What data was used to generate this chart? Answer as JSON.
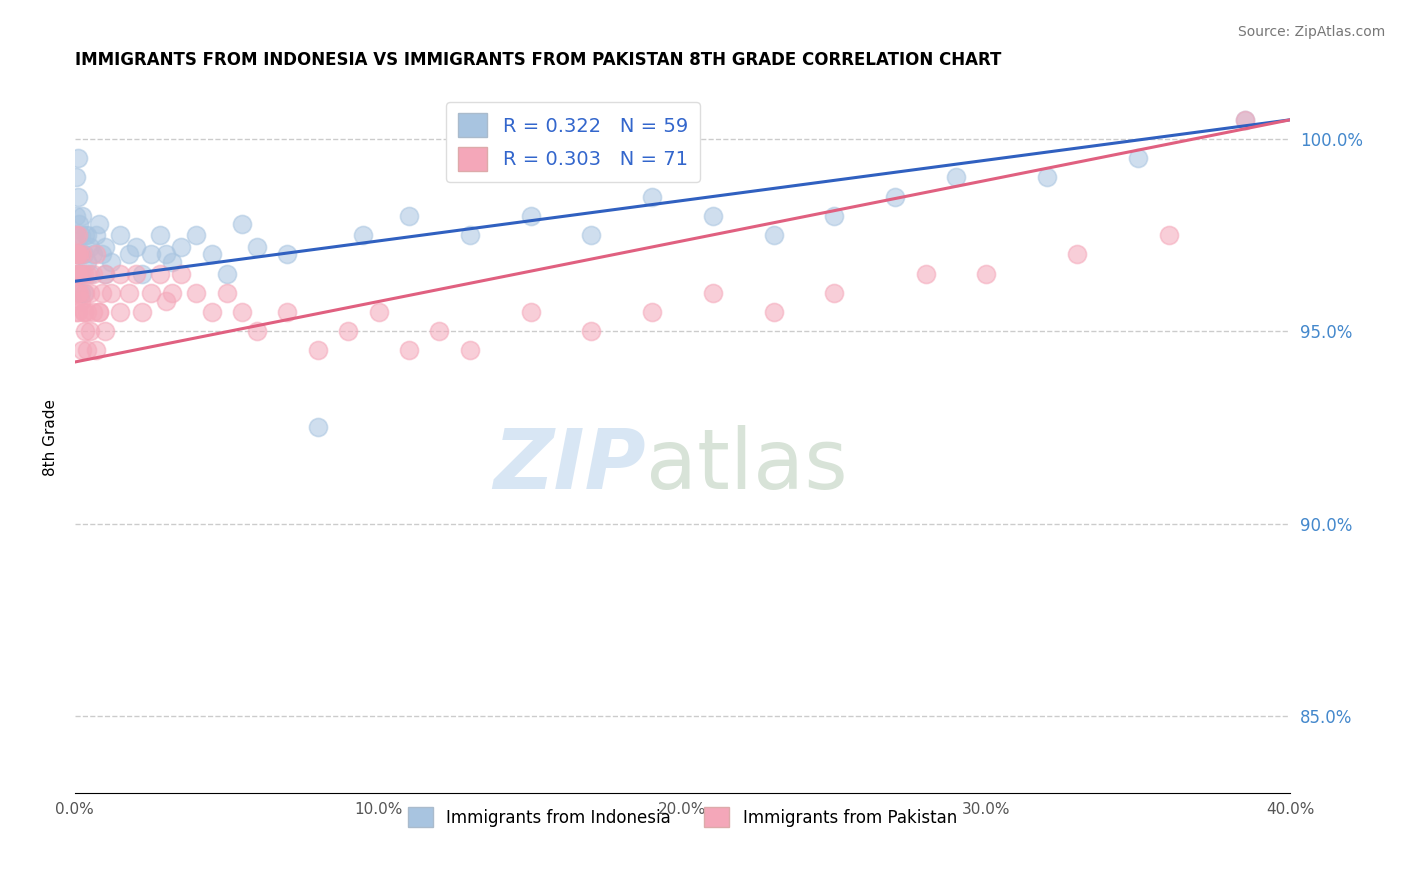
{
  "title": "IMMIGRANTS FROM INDONESIA VS IMMIGRANTS FROM PAKISTAN 8TH GRADE CORRELATION CHART",
  "source": "Source: ZipAtlas.com",
  "ylabel": "8th Grade",
  "xlim": [
    0.0,
    40.0
  ],
  "ylim": [
    83.0,
    101.5
  ],
  "yticks": [
    85.0,
    90.0,
    95.0,
    100.0
  ],
  "ytick_labels": [
    "85.0%",
    "90.0%",
    "95.0%",
    "100.0%"
  ],
  "xticks": [
    0.0,
    10.0,
    20.0,
    30.0,
    40.0
  ],
  "xtick_labels": [
    "0.0%",
    "10.0%",
    "20.0%",
    "30.0%",
    "40.0%"
  ],
  "indonesia_color": "#a8c4e0",
  "pakistan_color": "#f4a7b9",
  "indonesia_line_color": "#3060c0",
  "pakistan_line_color": "#e06080",
  "R_indonesia": 0.322,
  "N_indonesia": 59,
  "R_pakistan": 0.303,
  "N_pakistan": 71,
  "indo_line_x0": 0.0,
  "indo_line_y0": 96.3,
  "indo_line_x1": 40.0,
  "indo_line_y1": 100.5,
  "pak_line_x0": 0.0,
  "pak_line_y0": 94.2,
  "pak_line_x1": 40.0,
  "pak_line_y1": 100.5,
  "indonesia_x": [
    0.05,
    0.05,
    0.05,
    0.05,
    0.1,
    0.1,
    0.1,
    0.1,
    0.15,
    0.15,
    0.2,
    0.2,
    0.2,
    0.25,
    0.25,
    0.3,
    0.3,
    0.35,
    0.4,
    0.4,
    0.5,
    0.5,
    0.6,
    0.7,
    0.8,
    0.9,
    1.0,
    1.0,
    1.2,
    1.5,
    1.8,
    2.0,
    2.2,
    2.5,
    2.8,
    3.0,
    3.2,
    3.5,
    4.0,
    4.5,
    5.0,
    5.5,
    6.0,
    7.0,
    8.0,
    9.5,
    11.0,
    13.0,
    15.0,
    17.0,
    19.0,
    21.0,
    23.0,
    25.0,
    27.0,
    29.0,
    32.0,
    35.0,
    38.5
  ],
  "indonesia_y": [
    98.0,
    97.5,
    97.0,
    99.0,
    98.5,
    97.0,
    96.5,
    99.5,
    96.5,
    97.8,
    97.0,
    96.0,
    97.5,
    98.0,
    96.5,
    97.0,
    96.0,
    97.5,
    97.5,
    96.8,
    97.2,
    96.5,
    97.0,
    97.5,
    97.8,
    97.0,
    97.2,
    96.5,
    96.8,
    97.5,
    97.0,
    97.2,
    96.5,
    97.0,
    97.5,
    97.0,
    96.8,
    97.2,
    97.5,
    97.0,
    96.5,
    97.8,
    97.2,
    97.0,
    92.5,
    97.5,
    98.0,
    97.5,
    98.0,
    97.5,
    98.5,
    98.0,
    97.5,
    98.0,
    98.5,
    99.0,
    99.0,
    99.5,
    100.5
  ],
  "pakistan_x": [
    0.05,
    0.05,
    0.05,
    0.05,
    0.05,
    0.08,
    0.08,
    0.1,
    0.1,
    0.1,
    0.12,
    0.12,
    0.15,
    0.15,
    0.2,
    0.2,
    0.25,
    0.3,
    0.3,
    0.35,
    0.4,
    0.4,
    0.5,
    0.6,
    0.7,
    0.8,
    0.9,
    1.0,
    1.2,
    1.5,
    1.8,
    2.0,
    2.2,
    2.5,
    2.8,
    3.0,
    3.2,
    3.5,
    4.0,
    4.5,
    5.0,
    5.5,
    6.0,
    7.0,
    8.0,
    9.0,
    10.0,
    11.0,
    12.0,
    13.0,
    15.0,
    17.0,
    19.0,
    21.0,
    23.0,
    25.0,
    28.0,
    30.0,
    33.0,
    36.0,
    0.25,
    0.3,
    0.35,
    0.4,
    0.5,
    0.6,
    0.7,
    0.8,
    1.0,
    1.5,
    38.5
  ],
  "pakistan_y": [
    96.5,
    96.0,
    97.0,
    97.5,
    95.5,
    97.0,
    96.5,
    96.0,
    97.0,
    95.5,
    96.5,
    97.5,
    96.0,
    97.0,
    96.5,
    95.8,
    97.0,
    96.5,
    95.5,
    96.0,
    96.5,
    95.5,
    96.0,
    96.5,
    97.0,
    95.5,
    96.0,
    96.5,
    96.0,
    96.5,
    96.0,
    96.5,
    95.5,
    96.0,
    96.5,
    95.8,
    96.0,
    96.5,
    96.0,
    95.5,
    96.0,
    95.5,
    95.0,
    95.5,
    94.5,
    95.0,
    95.5,
    94.5,
    95.0,
    94.5,
    95.5,
    95.0,
    95.5,
    96.0,
    95.5,
    96.0,
    96.5,
    96.5,
    97.0,
    97.5,
    94.5,
    95.5,
    95.0,
    94.5,
    95.0,
    95.5,
    94.5,
    95.5,
    95.0,
    95.5,
    100.5
  ]
}
